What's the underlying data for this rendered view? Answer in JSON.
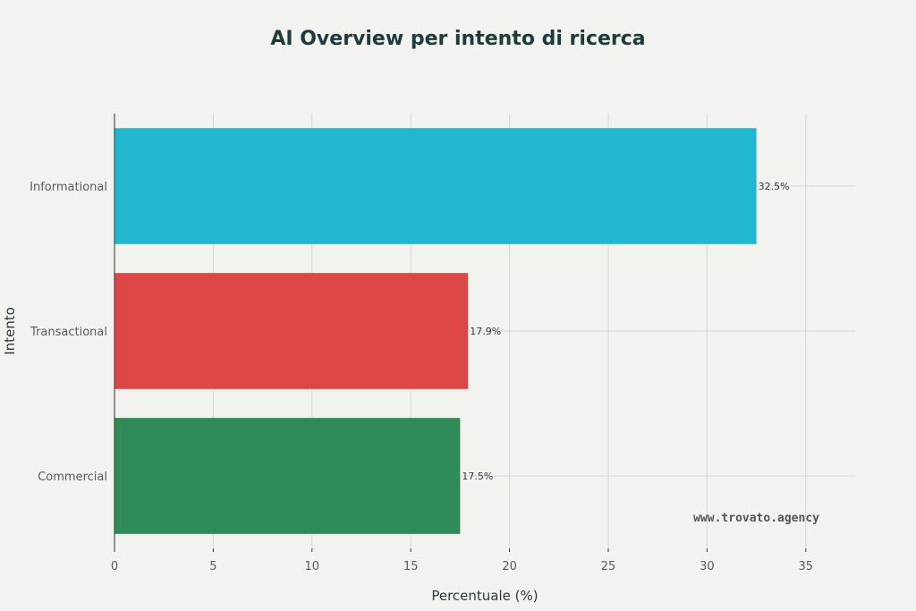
{
  "watermark": "www.trovato.agency",
  "chart_data": {
    "type": "bar",
    "orientation": "horizontal",
    "title": "AI Overview per intento di ricerca",
    "xlabel": "Percentuale (%)",
    "ylabel": "Intento",
    "categories": [
      "Informational",
      "Transactional",
      "Commercial"
    ],
    "values": [
      32.5,
      17.9,
      17.5
    ],
    "value_labels": [
      "32.5%",
      "17.9%",
      "17.5%"
    ],
    "colors": [
      "#21b8cf",
      "#dc4647",
      "#2e8a57"
    ],
    "xlim": [
      0,
      37.5
    ],
    "xticks": [
      0,
      5,
      10,
      15,
      20,
      25,
      30,
      35
    ],
    "tick_labels": [
      "0",
      "5",
      "10",
      "15",
      "20",
      "25",
      "30",
      "35"
    ],
    "grid": true
  }
}
